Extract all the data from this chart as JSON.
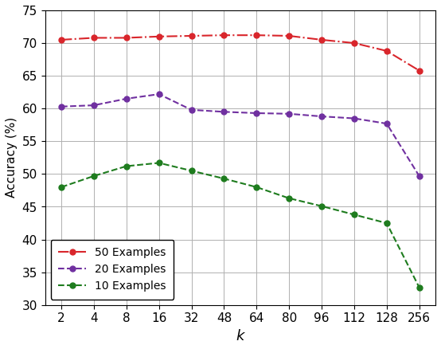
{
  "k_values": [
    2,
    4,
    8,
    16,
    32,
    48,
    64,
    80,
    96,
    112,
    128,
    256
  ],
  "k_labels": [
    "2",
    "4",
    "8",
    "16",
    "32",
    "48",
    "64",
    "80",
    "96",
    "112",
    "128",
    "256"
  ],
  "series": [
    {
      "label": "50 Examples",
      "color": "#d9262c",
      "linestyle": "-.",
      "values": [
        70.5,
        70.8,
        70.8,
        71.0,
        71.1,
        71.2,
        71.2,
        71.1,
        70.5,
        70.0,
        68.8,
        65.8
      ]
    },
    {
      "label": "20 Examples",
      "color": "#7030a0",
      "linestyle": "--",
      "values": [
        60.3,
        60.5,
        61.5,
        62.2,
        59.8,
        59.5,
        59.3,
        59.2,
        58.8,
        58.5,
        57.7,
        49.7
      ]
    },
    {
      "label": "10 Examples",
      "color": "#1e7c1e",
      "linestyle": "--",
      "values": [
        48.0,
        49.7,
        51.2,
        51.7,
        50.5,
        49.3,
        48.0,
        46.3,
        45.1,
        43.8,
        42.5,
        32.7
      ]
    }
  ],
  "xlabel": "k",
  "ylabel": "Accuracy (%)",
  "ylim": [
    30,
    75
  ],
  "yticks": [
    30,
    35,
    40,
    45,
    50,
    55,
    60,
    65,
    70,
    75
  ],
  "background_color": "#ffffff",
  "grid_color": "#b0b0b0"
}
